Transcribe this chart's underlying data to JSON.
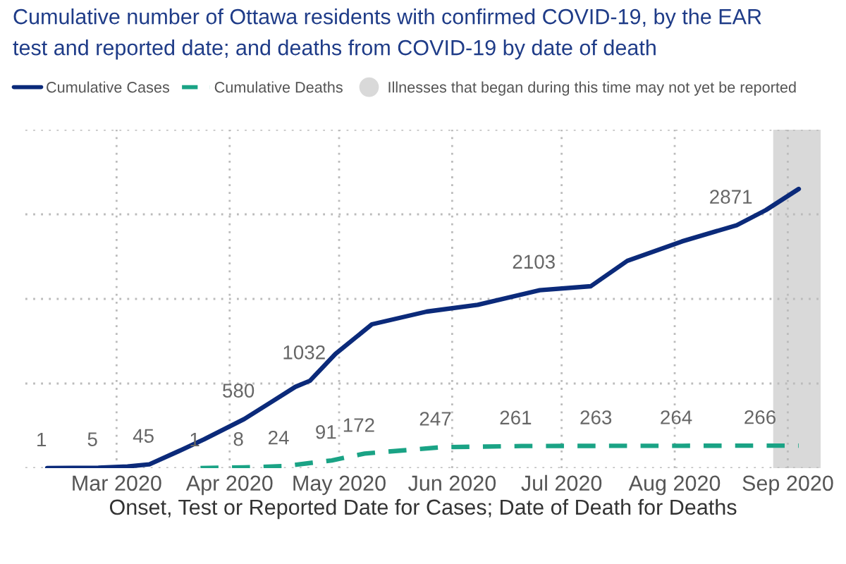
{
  "chart_data": {
    "type": "line",
    "title": "Cumulative number of Ottawa residents with confirmed COVID-19, by the EAR",
    "subtitle": "test and reported date; and deaths from COVID-19 by date of death",
    "xlabel": "Onset, Test or Reported Date for Cases; Date of Death for Deaths",
    "series": [
      {
        "name": "Cumulative Cases",
        "color": "#0b2a7a",
        "line_style": "solid",
        "x": [
          "2020-02-11",
          "2020-02-25",
          "2020-03-04",
          "2020-03-10",
          "2020-03-18",
          "2020-03-25",
          "2020-04-05",
          "2020-04-12",
          "2020-04-19",
          "2020-04-23",
          "2020-04-30",
          "2020-05-10",
          "2020-05-25",
          "2020-06-08",
          "2020-06-25",
          "2020-07-09",
          "2020-07-19",
          "2020-08-03",
          "2020-08-18",
          "2020-08-26",
          "2020-09-04"
        ],
        "values": [
          1,
          5,
          20,
          45,
          200,
          340,
          580,
          770,
          960,
          1032,
          1350,
          1700,
          1850,
          1930,
          2103,
          2150,
          2450,
          2680,
          2871,
          3050,
          3300
        ],
        "value_labels": [
          "1",
          "5",
          null,
          "45",
          null,
          null,
          "580",
          null,
          null,
          "1032",
          null,
          null,
          null,
          null,
          "2103",
          null,
          null,
          null,
          "2871",
          null,
          null
        ]
      },
      {
        "name": "Cumulative Deaths",
        "color": "#1aa385",
        "line_style": "dashed",
        "x": [
          "2020-03-24",
          "2020-04-05",
          "2020-04-16",
          "2020-04-29",
          "2020-05-08",
          "2020-05-29",
          "2020-06-20",
          "2020-07-12",
          "2020-08-03",
          "2020-08-26",
          "2020-09-04"
        ],
        "values": [
          1,
          8,
          24,
          91,
          172,
          247,
          261,
          263,
          264,
          266,
          266
        ],
        "value_labels": [
          "1",
          "8",
          "24",
          "91",
          "172",
          "247",
          "261",
          "263",
          "264",
          "266",
          null
        ]
      }
    ],
    "bands": [
      {
        "axis": "x",
        "from": "2020-08-28",
        "to": "2020-09-10",
        "label": "Illnesses that began during this time may not yet be reported",
        "color": "#d9d9d9"
      }
    ],
    "xlim": [
      "2020-02-05",
      "2020-09-10"
    ],
    "xticks": [
      {
        "value": "2020-03-01",
        "label": "Mar 2020"
      },
      {
        "value": "2020-04-01",
        "label": "Apr 2020"
      },
      {
        "value": "2020-05-01",
        "label": "May 2020"
      },
      {
        "value": "2020-06-01",
        "label": "Jun 2020"
      },
      {
        "value": "2020-07-01",
        "label": "Jul 2020"
      },
      {
        "value": "2020-08-01",
        "label": "Aug 2020"
      },
      {
        "value": "2020-09-01",
        "label": "Sep 2020"
      }
    ],
    "ylim": [
      0,
      4000
    ],
    "yticks": [
      {
        "value": 0,
        "label": null
      },
      {
        "value": 1000,
        "label": null
      },
      {
        "value": 2000,
        "label": null
      },
      {
        "value": 3000,
        "label": null
      },
      {
        "value": 4000,
        "label": null
      }
    ],
    "tick_labels": "x",
    "grid": true,
    "legend": "top left"
  }
}
